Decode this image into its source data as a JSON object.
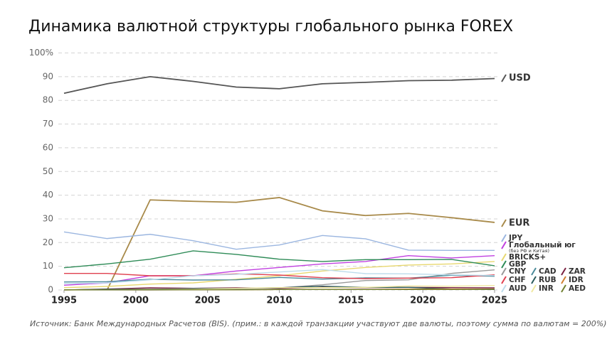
{
  "chart_data": {
    "type": "line",
    "title": "Динамика валютной структуры глобального рынка FOREX",
    "source": "Источник: Банк Международных Расчетов (BIS). (прим.: в каждой транзакции участвуют две валюты, поэтому сумма по валютам = 200%)",
    "x": [
      1995,
      1998,
      2001,
      2004,
      2007,
      2010,
      2013,
      2016,
      2019,
      2022,
      2025
    ],
    "xlim": [
      1995,
      2025
    ],
    "xticks": [
      1995,
      2000,
      2005,
      2010,
      2015,
      2020,
      2025
    ],
    "ylim": [
      0,
      100
    ],
    "yticks": [
      0,
      10,
      20,
      30,
      40,
      50,
      60,
      70,
      80,
      90,
      {
        "value": 100,
        "label": "100%"
      }
    ],
    "grid": true,
    "series": [
      {
        "name": "USD",
        "color": "#555555",
        "values": [
          83,
          87,
          90,
          88,
          85.6,
          84.9,
          87,
          87.6,
          88.3,
          88.5,
          89.2
        ]
      },
      {
        "name": "EUR",
        "color": "#a88a4a",
        "values": [
          null,
          0,
          38,
          37.4,
          37,
          39,
          33.4,
          31.4,
          32.3,
          30.5,
          28.5
        ]
      },
      {
        "name": "JPY",
        "color": "#9bb6e0",
        "values": [
          24.5,
          21.7,
          23.5,
          20.8,
          17.2,
          19,
          23,
          21.6,
          16.8,
          16.7,
          16.7
        ]
      },
      {
        "name": "Глобальный юг",
        "note": "(без РФ и Китая)",
        "color": "#c040e0",
        "values": [
          2,
          3,
          6,
          6,
          8,
          9.5,
          11,
          12,
          14.5,
          13.5,
          14.5
        ]
      },
      {
        "name": "BRICKS+",
        "color": "#e8d870",
        "values": [
          1,
          1.5,
          2.5,
          3,
          4.5,
          6,
          8,
          9.5,
          10.5,
          11,
          12
        ]
      },
      {
        "name": "GBP",
        "color": "#2e8b57",
        "values": [
          9.4,
          11,
          13,
          16.5,
          15,
          13,
          12,
          12.8,
          12.8,
          12.9,
          10.2
        ]
      },
      {
        "name": "CNY",
        "color": "#999999",
        "values": [
          0,
          0,
          0,
          0.1,
          0.5,
          0.9,
          2.2,
          4,
          4.3,
          7,
          8.5
        ]
      },
      {
        "name": "CAD",
        "color": "#4a8a9a",
        "values": [
          3.4,
          3.5,
          4.5,
          4.2,
          4.3,
          5.3,
          4.6,
          5.1,
          5,
          6.2,
          5.8
        ]
      },
      {
        "name": "ZAR",
        "color": "#7a2040",
        "values": [
          0,
          0.4,
          0.9,
          0.7,
          0.9,
          0.7,
          1.1,
          1,
          1.1,
          1,
          0.9
        ]
      },
      {
        "name": "CHF",
        "color": "#e04050",
        "values": [
          7,
          7,
          6,
          6,
          6.8,
          6.3,
          5.2,
          4.8,
          5,
          5.2,
          6.4
        ]
      },
      {
        "name": "RUB",
        "color": "#2a5a5a",
        "values": [
          0,
          0.3,
          0.3,
          0.6,
          0.7,
          0.9,
          1.6,
          1.1,
          1.1,
          0.4,
          0.2
        ]
      },
      {
        "name": "IDR",
        "color": "#d08030",
        "values": [
          0.1,
          0.1,
          0.1,
          0.1,
          0.1,
          0.2,
          0.2,
          0.2,
          0.4,
          0.4,
          0.4
        ]
      },
      {
        "name": "AUD",
        "color": "#bcdcec",
        "values": [
          2.7,
          3,
          4.3,
          6,
          6.6,
          7.6,
          8.6,
          6.9,
          6.8,
          6.4,
          6.1
        ]
      },
      {
        "name": "INR",
        "color": "#f0e8a0",
        "values": [
          0,
          0.1,
          0.2,
          0.3,
          0.7,
          1,
          1,
          1.1,
          1.7,
          1.6,
          1.9
        ]
      },
      {
        "name": "AED",
        "color": "#708030",
        "values": [
          0.1,
          0.1,
          0.1,
          0.1,
          0.1,
          0.2,
          0.2,
          0.2,
          0.2,
          0.2,
          0.3
        ]
      }
    ]
  }
}
